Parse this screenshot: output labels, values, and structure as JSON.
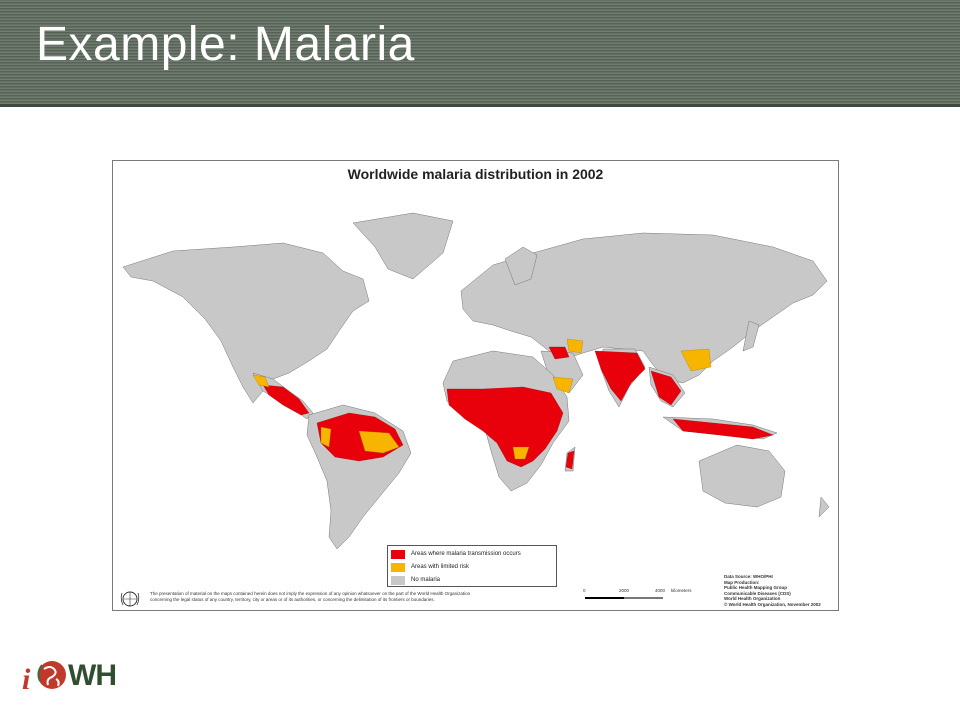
{
  "slide": {
    "title": "Example: Malaria"
  },
  "map": {
    "title": "Worldwide malaria distribution in 2002",
    "legend": [
      {
        "label": "Areas where malaria transmission occurs",
        "color": "#e8000b"
      },
      {
        "label": "Areas with limited risk",
        "color": "#f7b500"
      },
      {
        "label": "No malaria",
        "color": "#c8c8c8"
      }
    ],
    "disclaimer_line1": "The presentation of material on the maps contained herein does not imply the expression of any opinion whatsoever on the part of the World Health Organization",
    "disclaimer_line2": "concerning the legal status of any country, territory, city or areas or of its authorities, or concerning the delimitation of its frontiers or boundaries.",
    "scale": {
      "zero": "0",
      "mid": "2000",
      "end": "4000",
      "unit": "kilometers"
    },
    "source": {
      "line1": "Data Source: WHO/PHI",
      "line2": "Map Production:",
      "line3": "Public Health Mapping Group",
      "line4": "Communicable Diseases (CDS)",
      "line5": "World Health Organization",
      "line6": "© World Health Organization, November 2002"
    }
  },
  "logo": {
    "prefix": "i",
    "text": "WH"
  },
  "colors": {
    "title_bar": "#5f6d5f",
    "land": "#c8c8c8",
    "transmission": "#e8000b",
    "limited_risk": "#f7b500"
  }
}
